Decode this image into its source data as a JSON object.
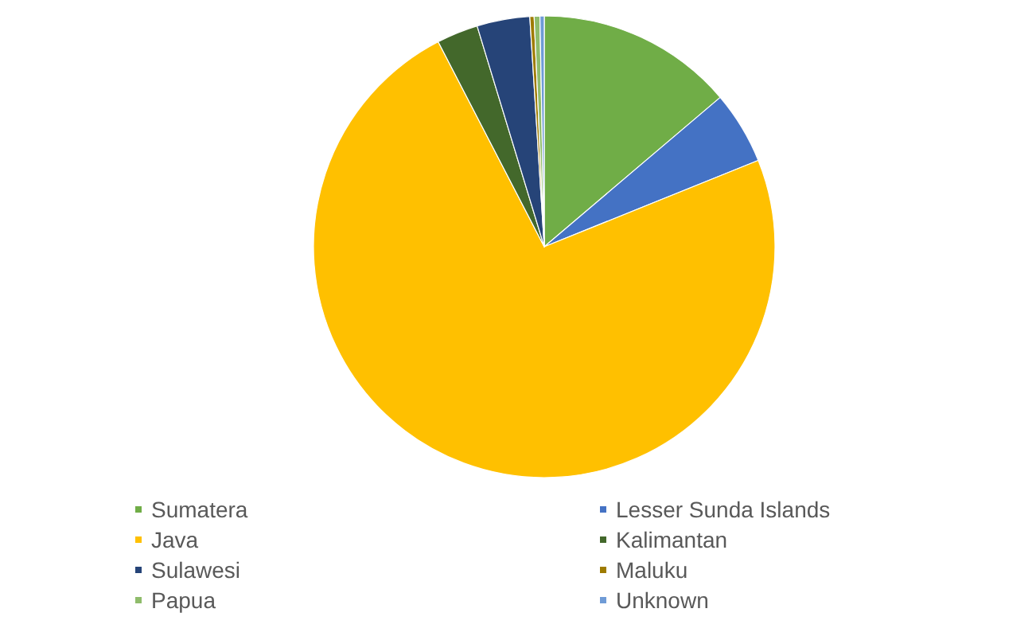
{
  "chart_data": {
    "type": "pie",
    "categories": [
      "Sumatera",
      "Lesser Sunda Islands",
      "Java",
      "Kalimantan",
      "Sulawesi",
      "Maluku",
      "Papua",
      "Unknown"
    ],
    "values": [
      13.8,
      5.1,
      73.5,
      2.9,
      3.7,
      0.3,
      0.4,
      0.3
    ],
    "colors": [
      "#70ad47",
      "#4472c4",
      "#ffc000",
      "#43682b",
      "#264478",
      "#9e7b00",
      "#8fbc6b",
      "#6f9bd6"
    ],
    "legend": "bottom"
  }
}
